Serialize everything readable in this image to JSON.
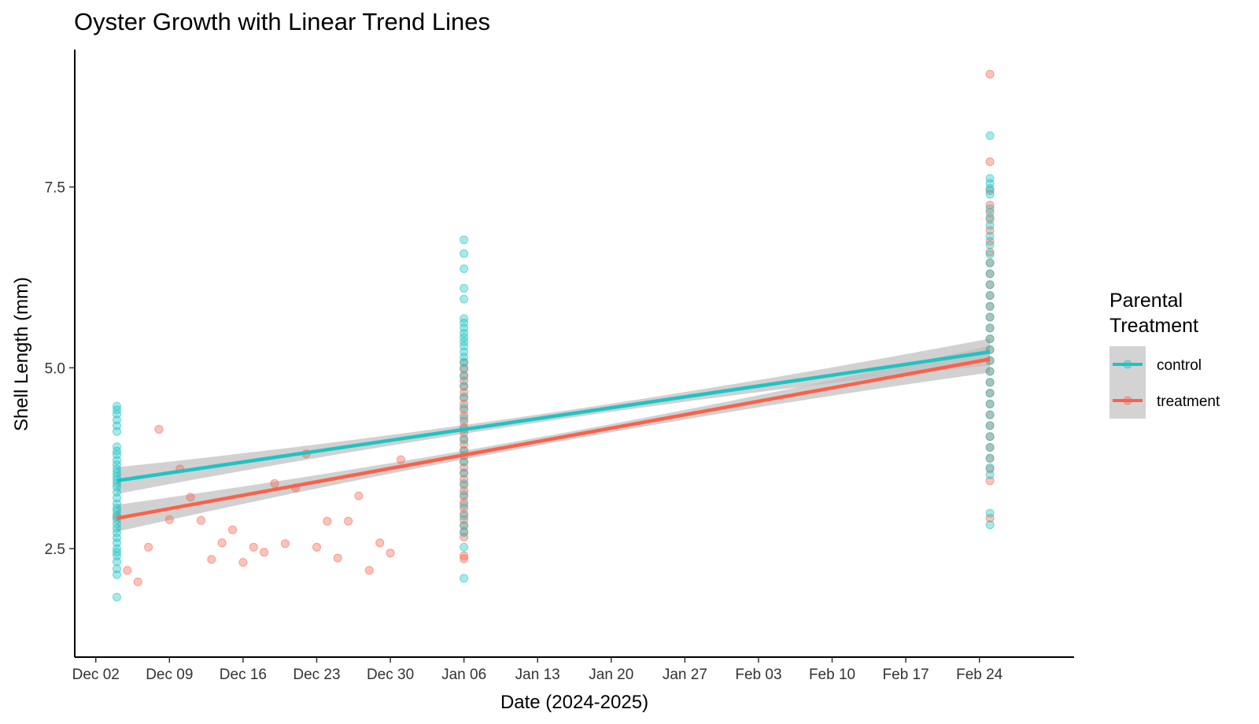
{
  "chart_data": {
    "type": "scatter",
    "title": "Oyster Growth with Linear Trend Lines",
    "xlabel": "Date (2024-2025)",
    "ylabel": "Shell Length (mm)",
    "x_scale": "date",
    "xlim": [
      "2024-11-30",
      "2025-03-05"
    ],
    "ylim": [
      1.0,
      9.4
    ],
    "x_ticks": [
      "2024-12-02",
      "2024-12-09",
      "2024-12-16",
      "2024-12-23",
      "2024-12-30",
      "2025-01-06",
      "2025-01-13",
      "2025-01-20",
      "2025-01-27",
      "2025-02-03",
      "2025-02-10",
      "2025-02-17",
      "2025-02-24"
    ],
    "x_tick_labels": [
      "Dec 02",
      "Dec 09",
      "Dec 16",
      "Dec 23",
      "Dec 30",
      "Jan 06",
      "Jan 13",
      "Jan 20",
      "Jan 27",
      "Feb 03",
      "Feb 10",
      "Feb 17",
      "Feb 24"
    ],
    "y_ticks": [
      2.5,
      5.0,
      7.5
    ],
    "y_tick_labels": [
      "2.5",
      "5.0",
      "7.5"
    ],
    "grid": false,
    "legend": {
      "title": "Parental Treatment",
      "position": "right"
    },
    "series": [
      {
        "name": "control",
        "color": "#1FC3C3",
        "points": [
          [
            "2024-12-04",
            4.47
          ],
          [
            "2024-12-04",
            4.42
          ],
          [
            "2024-12-04",
            4.36
          ],
          [
            "2024-12-04",
            4.28
          ],
          [
            "2024-12-04",
            4.2
          ],
          [
            "2024-12-04",
            4.12
          ],
          [
            "2024-12-04",
            3.91
          ],
          [
            "2024-12-04",
            3.85
          ],
          [
            "2024-12-04",
            3.8
          ],
          [
            "2024-12-04",
            3.72
          ],
          [
            "2024-12-04",
            3.66
          ],
          [
            "2024-12-04",
            3.6
          ],
          [
            "2024-12-04",
            3.55
          ],
          [
            "2024-12-04",
            3.5
          ],
          [
            "2024-12-04",
            3.45
          ],
          [
            "2024-12-04",
            3.4
          ],
          [
            "2024-12-04",
            3.35
          ],
          [
            "2024-12-04",
            3.28
          ],
          [
            "2024-12-04",
            3.2
          ],
          [
            "2024-12-04",
            3.12
          ],
          [
            "2024-12-04",
            3.06
          ],
          [
            "2024-12-04",
            3.02
          ],
          [
            "2024-12-04",
            2.96
          ],
          [
            "2024-12-04",
            2.9
          ],
          [
            "2024-12-04",
            2.84
          ],
          [
            "2024-12-04",
            2.78
          ],
          [
            "2024-12-04",
            2.72
          ],
          [
            "2024-12-04",
            2.65
          ],
          [
            "2024-12-04",
            2.58
          ],
          [
            "2024-12-04",
            2.5
          ],
          [
            "2024-12-04",
            2.45
          ],
          [
            "2024-12-04",
            2.4
          ],
          [
            "2024-12-04",
            2.32
          ],
          [
            "2024-12-04",
            2.22
          ],
          [
            "2024-12-04",
            2.14
          ],
          [
            "2024-12-04",
            1.83
          ],
          [
            "2025-01-06",
            6.77
          ],
          [
            "2025-01-06",
            6.58
          ],
          [
            "2025-01-06",
            6.37
          ],
          [
            "2025-01-06",
            6.1
          ],
          [
            "2025-01-06",
            5.95
          ],
          [
            "2025-01-06",
            5.68
          ],
          [
            "2025-01-06",
            5.62
          ],
          [
            "2025-01-06",
            5.55
          ],
          [
            "2025-01-06",
            5.48
          ],
          [
            "2025-01-06",
            5.42
          ],
          [
            "2025-01-06",
            5.36
          ],
          [
            "2025-01-06",
            5.3
          ],
          [
            "2025-01-06",
            5.22
          ],
          [
            "2025-01-06",
            5.15
          ],
          [
            "2025-01-06",
            5.08
          ],
          [
            "2025-01-06",
            5.0
          ],
          [
            "2025-01-06",
            4.88
          ],
          [
            "2025-01-06",
            4.75
          ],
          [
            "2025-01-06",
            4.6
          ],
          [
            "2025-01-06",
            4.45
          ],
          [
            "2025-01-06",
            4.3
          ],
          [
            "2025-01-06",
            4.15
          ],
          [
            "2025-01-06",
            4.0
          ],
          [
            "2025-01-06",
            3.85
          ],
          [
            "2025-01-06",
            3.7
          ],
          [
            "2025-01-06",
            3.55
          ],
          [
            "2025-01-06",
            3.4
          ],
          [
            "2025-01-06",
            3.25
          ],
          [
            "2025-01-06",
            3.1
          ],
          [
            "2025-01-06",
            2.95
          ],
          [
            "2025-01-06",
            2.82
          ],
          [
            "2025-01-06",
            2.72
          ],
          [
            "2025-01-06",
            2.52
          ],
          [
            "2025-01-06",
            2.09
          ],
          [
            "2025-02-25",
            8.21
          ],
          [
            "2025-02-25",
            7.62
          ],
          [
            "2025-02-25",
            7.55
          ],
          [
            "2025-02-25",
            7.48
          ],
          [
            "2025-02-25",
            7.4
          ],
          [
            "2025-02-25",
            7.2
          ],
          [
            "2025-02-25",
            7.08
          ],
          [
            "2025-02-25",
            6.97
          ],
          [
            "2025-02-25",
            6.82
          ],
          [
            "2025-02-25",
            6.7
          ],
          [
            "2025-02-25",
            6.57
          ],
          [
            "2025-02-25",
            6.45
          ],
          [
            "2025-02-25",
            6.3
          ],
          [
            "2025-02-25",
            6.15
          ],
          [
            "2025-02-25",
            6.0
          ],
          [
            "2025-02-25",
            5.85
          ],
          [
            "2025-02-25",
            5.7
          ],
          [
            "2025-02-25",
            5.55
          ],
          [
            "2025-02-25",
            5.4
          ],
          [
            "2025-02-25",
            5.25
          ],
          [
            "2025-02-25",
            5.1
          ],
          [
            "2025-02-25",
            4.95
          ],
          [
            "2025-02-25",
            4.8
          ],
          [
            "2025-02-25",
            4.65
          ],
          [
            "2025-02-25",
            4.5
          ],
          [
            "2025-02-25",
            4.35
          ],
          [
            "2025-02-25",
            4.2
          ],
          [
            "2025-02-25",
            4.05
          ],
          [
            "2025-02-25",
            3.9
          ],
          [
            "2025-02-25",
            3.75
          ],
          [
            "2025-02-25",
            3.62
          ],
          [
            "2025-02-25",
            3.52
          ],
          [
            "2025-02-25",
            2.99
          ],
          [
            "2025-02-25",
            2.83
          ]
        ],
        "trend": {
          "start": [
            "2024-12-04",
            3.44
          ],
          "end": [
            "2025-02-25",
            5.22
          ]
        }
      },
      {
        "name": "treatment",
        "color": "#F8624B",
        "points": [
          [
            "2024-12-04",
            2.94
          ],
          [
            "2024-12-05",
            2.2
          ],
          [
            "2024-12-06",
            2.04
          ],
          [
            "2024-12-07",
            2.52
          ],
          [
            "2024-12-08",
            4.15
          ],
          [
            "2024-12-09",
            2.9
          ],
          [
            "2024-12-10",
            3.6
          ],
          [
            "2024-12-11",
            3.21
          ],
          [
            "2024-12-12",
            2.89
          ],
          [
            "2024-12-13",
            2.35
          ],
          [
            "2024-12-14",
            2.58
          ],
          [
            "2024-12-15",
            2.76
          ],
          [
            "2024-12-16",
            2.31
          ],
          [
            "2024-12-17",
            2.52
          ],
          [
            "2024-12-18",
            2.45
          ],
          [
            "2024-12-19",
            3.4
          ],
          [
            "2024-12-20",
            2.57
          ],
          [
            "2024-12-21",
            3.34
          ],
          [
            "2024-12-22",
            3.81
          ],
          [
            "2024-12-23",
            2.52
          ],
          [
            "2024-12-24",
            2.88
          ],
          [
            "2024-12-25",
            2.37
          ],
          [
            "2024-12-26",
            2.88
          ],
          [
            "2024-12-27",
            3.23
          ],
          [
            "2024-12-28",
            2.2
          ],
          [
            "2024-12-29",
            2.58
          ],
          [
            "2024-12-30",
            2.44
          ],
          [
            "2024-12-31",
            3.73
          ],
          [
            "2025-01-06",
            5.07
          ],
          [
            "2025-01-06",
            4.98
          ],
          [
            "2025-01-06",
            4.9
          ],
          [
            "2025-01-06",
            4.82
          ],
          [
            "2025-01-06",
            4.74
          ],
          [
            "2025-01-06",
            4.66
          ],
          [
            "2025-01-06",
            4.58
          ],
          [
            "2025-01-06",
            4.5
          ],
          [
            "2025-01-06",
            4.42
          ],
          [
            "2025-01-06",
            4.34
          ],
          [
            "2025-01-06",
            4.26
          ],
          [
            "2025-01-06",
            4.18
          ],
          [
            "2025-01-06",
            4.1
          ],
          [
            "2025-01-06",
            4.02
          ],
          [
            "2025-01-06",
            3.94
          ],
          [
            "2025-01-06",
            3.86
          ],
          [
            "2025-01-06",
            3.78
          ],
          [
            "2025-01-06",
            3.7
          ],
          [
            "2025-01-06",
            3.62
          ],
          [
            "2025-01-06",
            3.54
          ],
          [
            "2025-01-06",
            3.46
          ],
          [
            "2025-01-06",
            3.38
          ],
          [
            "2025-01-06",
            3.3
          ],
          [
            "2025-01-06",
            3.22
          ],
          [
            "2025-01-06",
            3.14
          ],
          [
            "2025-01-06",
            3.06
          ],
          [
            "2025-01-06",
            2.98
          ],
          [
            "2025-01-06",
            2.9
          ],
          [
            "2025-01-06",
            2.82
          ],
          [
            "2025-01-06",
            2.74
          ],
          [
            "2025-01-06",
            2.66
          ],
          [
            "2025-01-06",
            2.4
          ],
          [
            "2025-01-06",
            2.36
          ],
          [
            "2025-02-25",
            9.06
          ],
          [
            "2025-02-25",
            7.85
          ],
          [
            "2025-02-25",
            7.45
          ],
          [
            "2025-02-25",
            7.25
          ],
          [
            "2025-02-25",
            7.15
          ],
          [
            "2025-02-25",
            7.05
          ],
          [
            "2025-02-25",
            6.9
          ],
          [
            "2025-02-25",
            6.75
          ],
          [
            "2025-02-25",
            6.6
          ],
          [
            "2025-02-25",
            6.45
          ],
          [
            "2025-02-25",
            6.3
          ],
          [
            "2025-02-25",
            6.15
          ],
          [
            "2025-02-25",
            6.0
          ],
          [
            "2025-02-25",
            5.85
          ],
          [
            "2025-02-25",
            5.7
          ],
          [
            "2025-02-25",
            5.55
          ],
          [
            "2025-02-25",
            5.4
          ],
          [
            "2025-02-25",
            5.25
          ],
          [
            "2025-02-25",
            5.1
          ],
          [
            "2025-02-25",
            4.95
          ],
          [
            "2025-02-25",
            4.8
          ],
          [
            "2025-02-25",
            4.65
          ],
          [
            "2025-02-25",
            4.5
          ],
          [
            "2025-02-25",
            4.35
          ],
          [
            "2025-02-25",
            4.2
          ],
          [
            "2025-02-25",
            4.05
          ],
          [
            "2025-02-25",
            3.9
          ],
          [
            "2025-02-25",
            3.75
          ],
          [
            "2025-02-25",
            3.6
          ],
          [
            "2025-02-25",
            3.44
          ],
          [
            "2025-02-25",
            2.92
          ]
        ],
        "trend": {
          "start": [
            "2024-12-04",
            2.92
          ],
          "end": [
            "2025-02-25",
            5.12
          ]
        }
      }
    ],
    "confidence_band": {
      "color": "#BEBEBE",
      "opacity": 0.7
    }
  }
}
